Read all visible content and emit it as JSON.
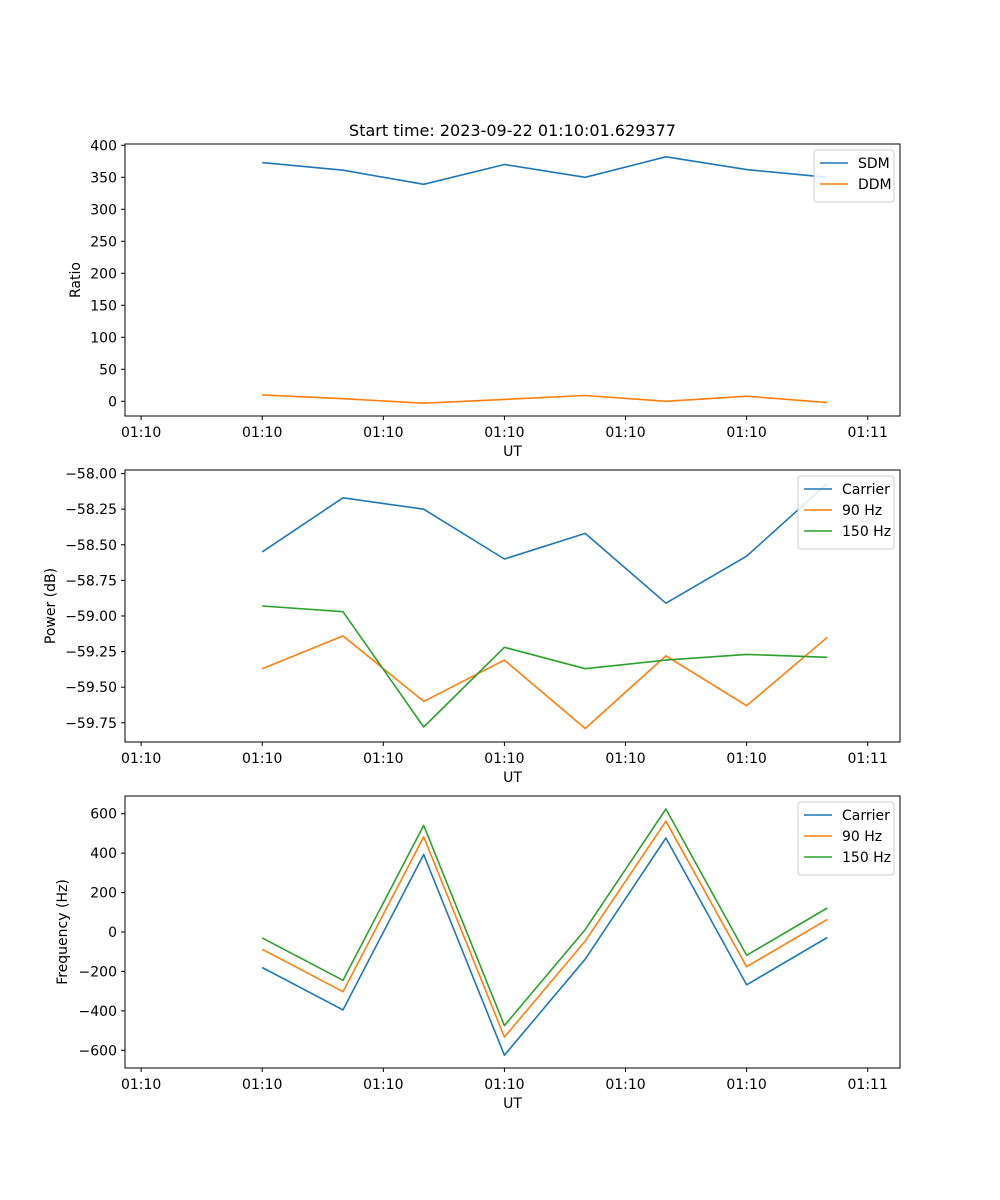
{
  "figure_title": "Start time: 2023-09-22 01:10:01.629377",
  "chart_data": [
    {
      "type": "line",
      "title": "Start time: 2023-09-22 01:10:01.629377",
      "xlabel": "UT",
      "ylabel": "Ratio",
      "x": [
        1,
        2,
        3,
        4,
        5,
        6,
        7,
        8
      ],
      "xlim": [
        -0.7,
        8.9
      ],
      "xticks": [
        -0.5,
        1.0,
        2.5,
        4.0,
        5.5,
        7.0,
        8.5
      ],
      "xticklabels": [
        "01:10",
        "01:10",
        "01:10",
        "01:10",
        "01:10",
        "01:10",
        "01:11"
      ],
      "ylim": [
        -23,
        402
      ],
      "yticks": [
        0,
        50,
        100,
        150,
        200,
        250,
        300,
        350,
        400
      ],
      "yticklabels": [
        "0",
        "50",
        "100",
        "150",
        "200",
        "250",
        "300",
        "350",
        "400"
      ],
      "legend_position": "top-right",
      "series": [
        {
          "name": "SDM",
          "color": "#1f77b4",
          "values": [
            373,
            361,
            339,
            370,
            350,
            382,
            362,
            350
          ]
        },
        {
          "name": "DDM",
          "color": "#ff7f0e",
          "values": [
            10,
            4,
            -3,
            3,
            9,
            0,
            8,
            -2
          ]
        }
      ]
    },
    {
      "type": "line",
      "title": "",
      "xlabel": "UT",
      "ylabel": "Power (dB)",
      "x": [
        1,
        2,
        3,
        4,
        5,
        6,
        7,
        8
      ],
      "xlim": [
        -0.7,
        8.9
      ],
      "xticks": [
        -0.5,
        1.0,
        2.5,
        4.0,
        5.5,
        7.0,
        8.5
      ],
      "xticklabels": [
        "01:10",
        "01:10",
        "01:10",
        "01:10",
        "01:10",
        "01:10",
        "01:11"
      ],
      "ylim": [
        -59.885,
        -57.975
      ],
      "yticks": [
        -59.75,
        -59.5,
        -59.25,
        -59.0,
        -58.75,
        -58.5,
        -58.25,
        -58.0
      ],
      "yticklabels": [
        "−59.75",
        "−59.50",
        "−59.25",
        "−59.00",
        "−58.75",
        "−58.50",
        "−58.25",
        "−58.00"
      ],
      "legend_position": "top-right",
      "series": [
        {
          "name": "Carrier",
          "color": "#1f77b4",
          "values": [
            -58.55,
            -58.17,
            -58.25,
            -58.6,
            -58.42,
            -58.91,
            -58.58,
            -58.07
          ]
        },
        {
          "name": "90 Hz",
          "color": "#ff7f0e",
          "values": [
            -59.37,
            -59.14,
            -59.6,
            -59.31,
            -59.79,
            -59.28,
            -59.63,
            -59.15
          ]
        },
        {
          "name": "150 Hz",
          "color": "#2ca02c",
          "values": [
            -58.93,
            -58.97,
            -59.78,
            -59.22,
            -59.37,
            -59.31,
            -59.27,
            -59.29
          ]
        }
      ]
    },
    {
      "type": "line",
      "title": "",
      "xlabel": "UT",
      "ylabel": "Frequency (Hz)",
      "x": [
        1,
        2,
        3,
        4,
        5,
        6,
        7,
        8
      ],
      "xlim": [
        -0.7,
        8.9
      ],
      "xticks": [
        -0.5,
        1.0,
        2.5,
        4.0,
        5.5,
        7.0,
        8.5
      ],
      "xticklabels": [
        "01:10",
        "01:10",
        "01:10",
        "01:10",
        "01:10",
        "01:10",
        "01:11"
      ],
      "ylim": [
        -690,
        690
      ],
      "yticks": [
        -600,
        -400,
        -200,
        0,
        200,
        400,
        600
      ],
      "yticklabels": [
        "−600",
        "−400",
        "−200",
        "0",
        "200",
        "400",
        "600"
      ],
      "legend_position": "top-right",
      "series": [
        {
          "name": "Carrier",
          "color": "#1f77b4",
          "values": [
            -180,
            -395,
            393,
            -625,
            -138,
            477,
            -268,
            -28
          ]
        },
        {
          "name": "90 Hz",
          "color": "#ff7f0e",
          "values": [
            -88,
            -303,
            483,
            -533,
            -46,
            562,
            -176,
            64
          ]
        },
        {
          "name": "150 Hz",
          "color": "#2ca02c",
          "values": [
            -30,
            -245,
            541,
            -475,
            12,
            624,
            -118,
            122
          ]
        }
      ]
    }
  ]
}
